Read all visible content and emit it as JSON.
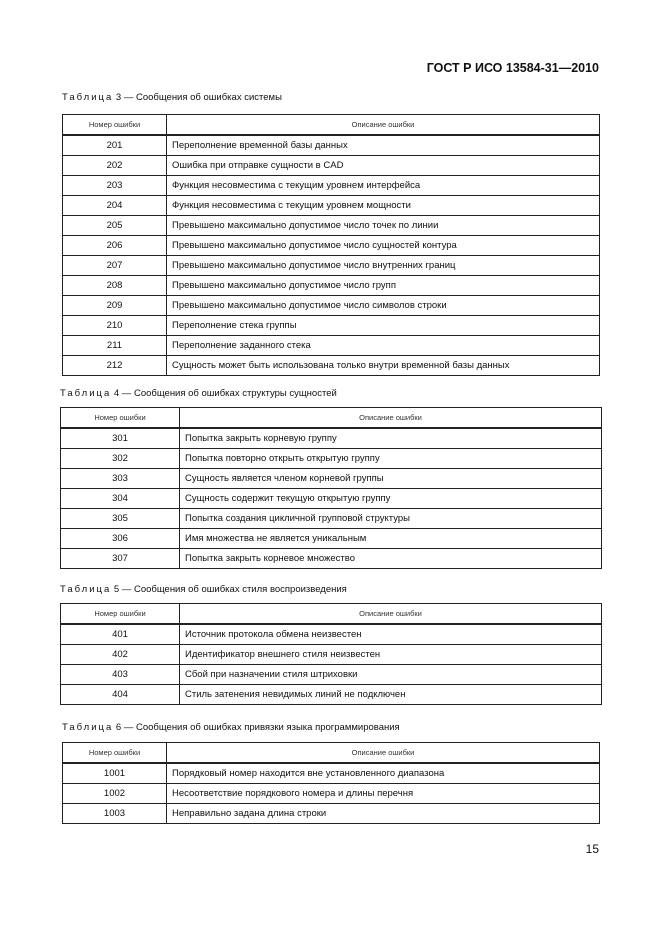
{
  "header": "ГОСТ Р ИСО 13584-31—2010",
  "page_number": "15",
  "col_headers": {
    "number": "Номер ошибки",
    "description": "Описание ошибки"
  },
  "tables": [
    {
      "label": "Таблица",
      "caption": "3 — Сообщения об ошибках системы",
      "rows": [
        [
          "201",
          "Переполнение временной базы данных"
        ],
        [
          "202",
          "Ошибка при отправке сущности в CAD"
        ],
        [
          "203",
          "Функция несовместима с текущим уровнем интерфейса"
        ],
        [
          "204",
          "Функция несовместима с текущим уровнем мощности"
        ],
        [
          "205",
          "Превышено максимально допустимое число точек по линии"
        ],
        [
          "206",
          "Превышено максимально допустимое число сущностей контура"
        ],
        [
          "207",
          "Превышено максимально допустимое число внутренних границ"
        ],
        [
          "208",
          "Превышено максимально допустимое число групп"
        ],
        [
          "209",
          "Превышено максимально допустимое число символов строки"
        ],
        [
          "210",
          "Переполнение стека группы"
        ],
        [
          "211",
          "Переполнение заданного стека"
        ],
        [
          "212",
          "Сущность может быть использована только внутри временной базы данных"
        ]
      ]
    },
    {
      "label": "Таблица",
      "caption": "4 — Сообщения об ошибках структуры сущностей",
      "rows": [
        [
          "301",
          "Попытка закрыть корневую группу"
        ],
        [
          "302",
          "Попытка повторно открыть открытую группу"
        ],
        [
          "303",
          "Сущность является членом корневой группы"
        ],
        [
          "304",
          "Сущность содержит текущую открытую группу"
        ],
        [
          "305",
          "Попытка создания цикличной групповой структуры"
        ],
        [
          "306",
          "Имя множества не является уникальным"
        ],
        [
          "307",
          "Попытка закрыть корневое множество"
        ]
      ]
    },
    {
      "label": "Таблица",
      "caption": "5 — Сообщения об ошибках стиля воспроизведения",
      "rows": [
        [
          "401",
          "Источник протокола обмена неизвестен"
        ],
        [
          "402",
          "Идентификатор внешнего стиля неизвестен"
        ],
        [
          "403",
          "Сбой при назначении стиля штриховки"
        ],
        [
          "404",
          "Стиль затенения невидимых линий не подключен"
        ]
      ]
    },
    {
      "label": "Таблица",
      "caption": "6 — Сообщения об ошибках привязки языка программирования",
      "rows": [
        [
          "1001",
          "Порядковый номер находится вне установленного диапазона"
        ],
        [
          "1002",
          "Несоответствие порядкового номера и длины перечня"
        ],
        [
          "1003",
          "Неправильно задана длина строки"
        ]
      ]
    }
  ]
}
